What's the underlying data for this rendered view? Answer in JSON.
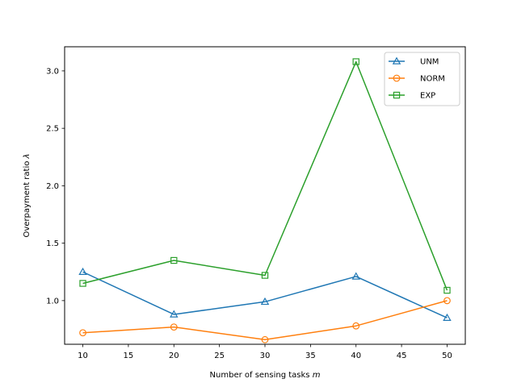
{
  "chart_data": {
    "type": "line",
    "title": "",
    "xlabel": "Number of sensing tasks",
    "xlabel_var": "m",
    "ylabel": "Overpayment ratio",
    "ylabel_var": "λ",
    "x": [
      10,
      20,
      30,
      40,
      50
    ],
    "xlim": [
      8,
      52
    ],
    "ylim": [
      0.62,
      3.21
    ],
    "xticks": [
      "10",
      "15",
      "20",
      "25",
      "30",
      "35",
      "40",
      "45",
      "50"
    ],
    "xtick_values": [
      10,
      15,
      20,
      25,
      30,
      35,
      40,
      45,
      50
    ],
    "yticks": [
      "1.0",
      "1.5",
      "2.0",
      "2.5",
      "3.0"
    ],
    "ytick_values": [
      1.0,
      1.5,
      2.0,
      2.5,
      3.0
    ],
    "grid": false,
    "legend_position": "top-right",
    "series": [
      {
        "name": "UNM",
        "color": "#1f77b4",
        "marker": "triangle",
        "values": [
          1.25,
          0.88,
          0.99,
          1.21,
          0.85
        ]
      },
      {
        "name": "NORM",
        "color": "#ff7f0e",
        "marker": "circle",
        "values": [
          0.72,
          0.77,
          0.66,
          0.78,
          1.0
        ]
      },
      {
        "name": "EXP",
        "color": "#2ca02c",
        "marker": "square",
        "values": [
          1.15,
          1.35,
          1.22,
          3.08,
          1.09
        ]
      }
    ]
  }
}
